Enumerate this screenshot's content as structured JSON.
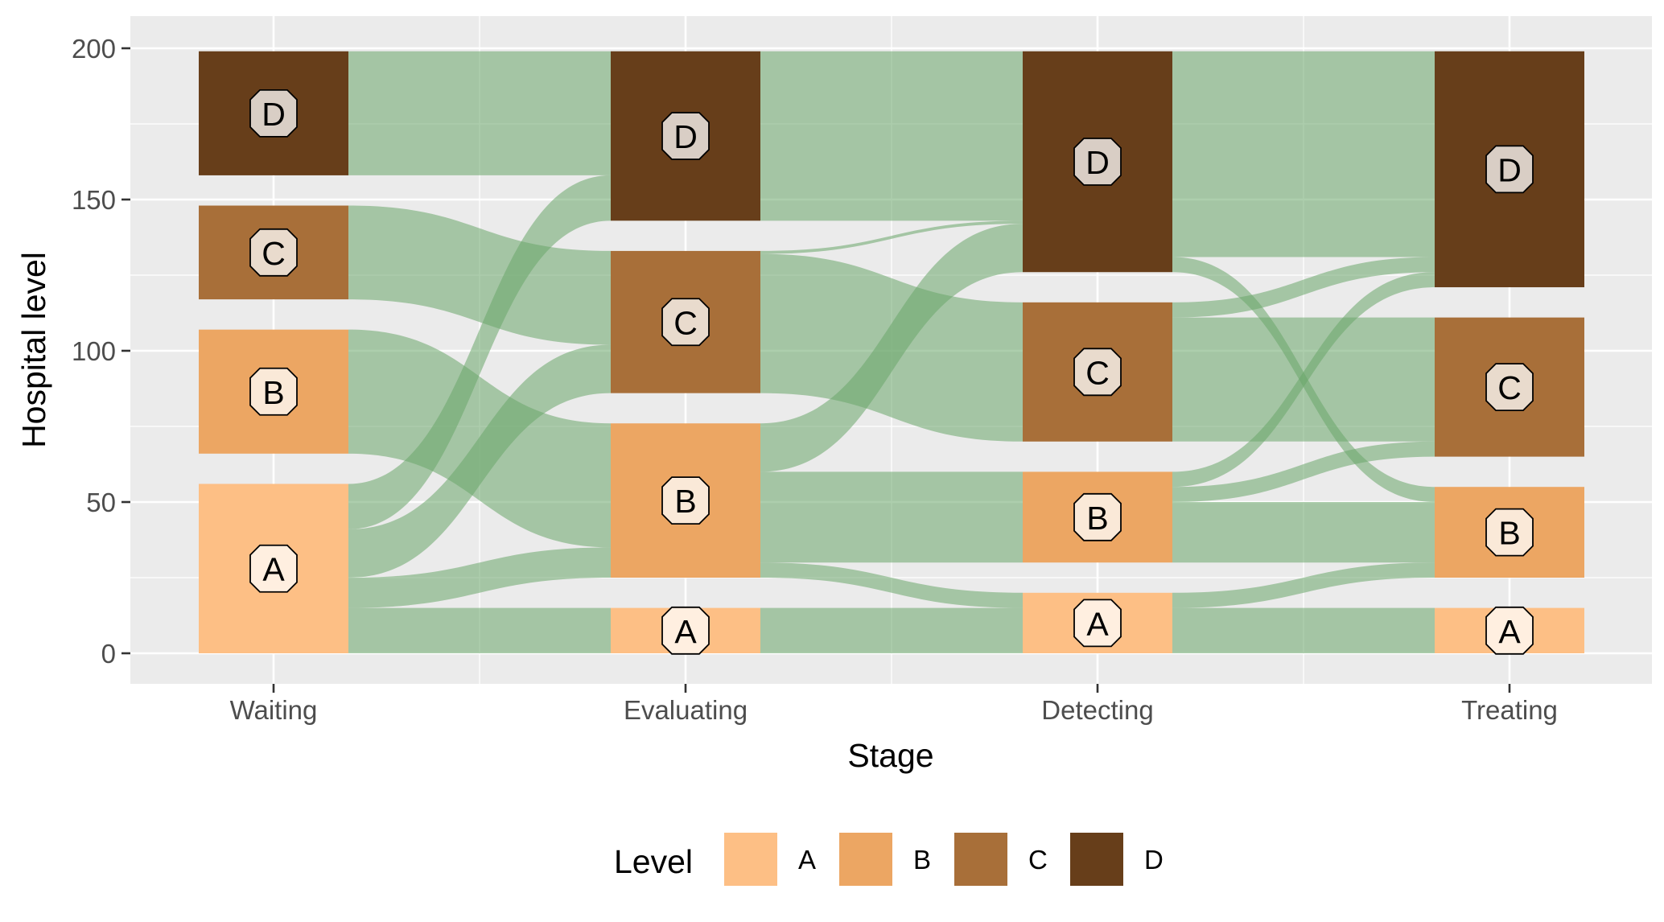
{
  "chart_data": {
    "type": "alluvial",
    "xlabel": "Stage",
    "ylabel": "Hospital level",
    "ylim": [
      -10,
      210
    ],
    "y_ticks": [
      0,
      50,
      100,
      150,
      200
    ],
    "y_tick_labels": [
      "0",
      "50",
      "100",
      "150",
      "200"
    ],
    "stages": [
      "Waiting",
      "Evaluating",
      "Detecting",
      "Treating"
    ],
    "levels": [
      "A",
      "B",
      "C",
      "D"
    ],
    "level_colors": {
      "A": "#fdbf85",
      "B": "#eca663",
      "C": "#a86f39",
      "D": "#673e1a"
    },
    "flow_color": "#6aa66a",
    "stratum_gap": 10,
    "strata": {
      "Waiting": {
        "A": 56,
        "B": 41,
        "C": 31,
        "D": 41
      },
      "Evaluating": {
        "A": 15,
        "B": 51,
        "C": 47,
        "D": 56
      },
      "Detecting": {
        "A": 20,
        "B": 30,
        "C": 46,
        "D": 73
      },
      "Treating": {
        "A": 15,
        "B": 30,
        "C": 46,
        "D": 78
      }
    },
    "flows": [
      {
        "stage": 0,
        "from": "A",
        "to": "A",
        "value": 15
      },
      {
        "stage": 0,
        "from": "A",
        "to": "B",
        "value": 10
      },
      {
        "stage": 0,
        "from": "A",
        "to": "C",
        "value": 16
      },
      {
        "stage": 0,
        "from": "A",
        "to": "D",
        "value": 15
      },
      {
        "stage": 0,
        "from": "B",
        "to": "B",
        "value": 41
      },
      {
        "stage": 0,
        "from": "C",
        "to": "C",
        "value": 31
      },
      {
        "stage": 0,
        "from": "D",
        "to": "D",
        "value": 41
      },
      {
        "stage": 1,
        "from": "A",
        "to": "A",
        "value": 15
      },
      {
        "stage": 1,
        "from": "B",
        "to": "A",
        "value": 5
      },
      {
        "stage": 1,
        "from": "B",
        "to": "B",
        "value": 30
      },
      {
        "stage": 1,
        "from": "B",
        "to": "D",
        "value": 16
      },
      {
        "stage": 1,
        "from": "C",
        "to": "C",
        "value": 46
      },
      {
        "stage": 1,
        "from": "C",
        "to": "D",
        "value": 1
      },
      {
        "stage": 1,
        "from": "D",
        "to": "D",
        "value": 56
      },
      {
        "stage": 2,
        "from": "A",
        "to": "A",
        "value": 15
      },
      {
        "stage": 2,
        "from": "A",
        "to": "B",
        "value": 5
      },
      {
        "stage": 2,
        "from": "B",
        "to": "B",
        "value": 20
      },
      {
        "stage": 2,
        "from": "B",
        "to": "C",
        "value": 5
      },
      {
        "stage": 2,
        "from": "B",
        "to": "D",
        "value": 5
      },
      {
        "stage": 2,
        "from": "C",
        "to": "C",
        "value": 41
      },
      {
        "stage": 2,
        "from": "C",
        "to": "D",
        "value": 5
      },
      {
        "stage": 2,
        "from": "D",
        "to": "B",
        "value": 5
      },
      {
        "stage": 2,
        "from": "D",
        "to": "D",
        "value": 68
      }
    ],
    "legend": {
      "title": "Level",
      "entries": [
        "A",
        "B",
        "C",
        "D"
      ],
      "position": "bottom"
    },
    "grid": true,
    "panel_background": "#ebebeb"
  }
}
